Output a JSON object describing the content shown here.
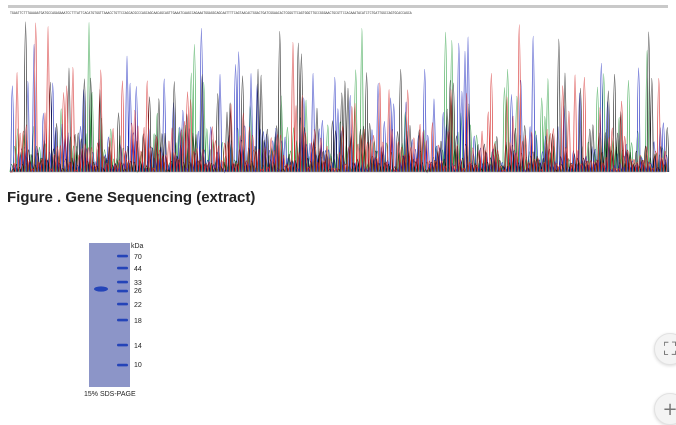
{
  "figure": {
    "caption": "Figure . Gene Sequencing (extract)"
  },
  "chromatogram": {
    "bases": "TGAATTCTTTAAAAATGATGCCAGAGAAATCCTTTATTCACATGTGGTTAAACCTGTTCCAGCACGCCCAGCAGCAACAGCAGTTGAAATCAAGCCAGAAATGGAGGCAGCAATTTTCAGTAACACTGGACTGATCGGAACACTCGGGTTCAGTGGGTTGCCGGGAACTGCGTTCCACAAATACATCTCTGATTGGCCAGTGCACCAGCA",
    "trace_colors": [
      "#2ea043",
      "#1f2bbf",
      "#111111",
      "#d42828"
    ]
  },
  "gel": {
    "unit_label": "kDa",
    "markers": [
      "70",
      "44",
      "33",
      "26",
      "22",
      "18",
      "14",
      "10"
    ],
    "caption": "15% SDS-PAGE",
    "lane_color": "#8c95c8",
    "band_color": "#2444b8"
  },
  "controls": {
    "scan_icon": "⛶",
    "plus_icon": "+"
  }
}
